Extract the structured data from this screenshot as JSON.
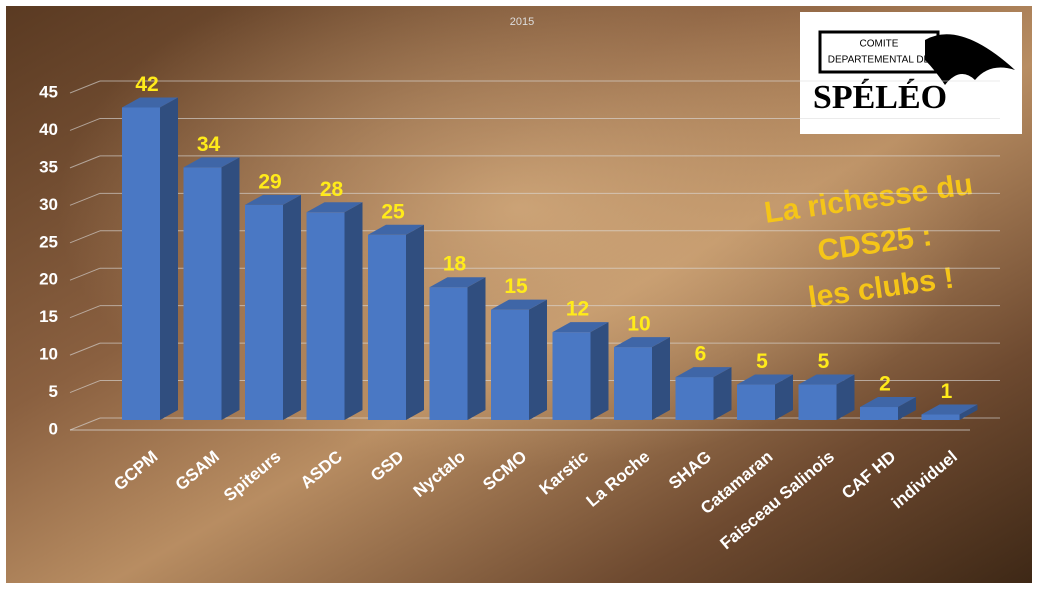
{
  "chart_data": {
    "type": "bar",
    "title": "2015",
    "categories": [
      "GCPM",
      "GSAM",
      "Spiteurs",
      "ASDC",
      "GSD",
      "Nyctalo",
      "SCMO",
      "Karstic",
      "La Roche",
      "SHAG",
      "Catamaran",
      "Faisceau Salinois",
      "CAF HD",
      "individuel"
    ],
    "values": [
      42,
      34,
      29,
      28,
      25,
      18,
      15,
      12,
      10,
      6,
      5,
      5,
      2,
      1
    ],
    "color": "#4a78c4",
    "ylim": [
      0,
      45
    ],
    "yticks": [
      0,
      5,
      10,
      15,
      20,
      25,
      30,
      35,
      40,
      45
    ],
    "grid": true,
    "annotation": [
      "La richesse du",
      "CDS25 :",
      "les clubs !"
    ],
    "logo": [
      "COMITE",
      "DEPARTEMENTAL DE",
      "SPÉLÉO"
    ]
  }
}
